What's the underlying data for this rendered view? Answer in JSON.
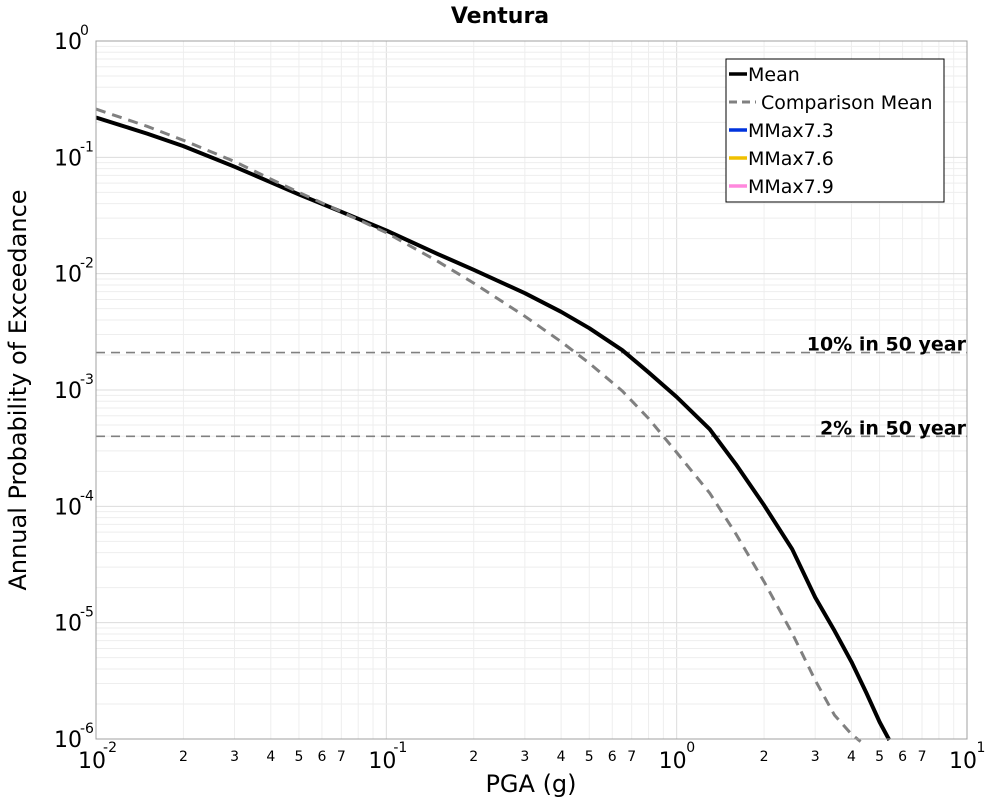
{
  "chart_data": {
    "type": "line",
    "title": "Ventura",
    "xlabel": "PGA (g)",
    "ylabel": "Annual Probability of Exceedance",
    "x_scale": "log",
    "y_scale": "log",
    "xlim": [
      0.01,
      10
    ],
    "ylim": [
      1e-06,
      1
    ],
    "grid": true,
    "legend_position": "top-right",
    "x_ticks": {
      "major": [
        {
          "value": 0.01,
          "base": "10",
          "exp": "-2"
        },
        {
          "value": 0.1,
          "base": "10",
          "exp": "-1"
        },
        {
          "value": 1,
          "base": "10",
          "exp": "0"
        },
        {
          "value": 10,
          "base": "10",
          "exp": "1"
        }
      ],
      "minor_labels": [
        "2",
        "3",
        "4",
        "5",
        "6",
        "7"
      ]
    },
    "y_ticks": {
      "major": [
        {
          "value": 1,
          "base": "10",
          "exp": "0"
        },
        {
          "value": 0.1,
          "base": "10",
          "exp": "-1"
        },
        {
          "value": 0.01,
          "base": "10",
          "exp": "-2"
        },
        {
          "value": 0.001,
          "base": "10",
          "exp": "-3"
        },
        {
          "value": 0.0001,
          "base": "10",
          "exp": "-4"
        },
        {
          "value": 1e-05,
          "base": "10",
          "exp": "-5"
        },
        {
          "value": 1e-06,
          "base": "10",
          "exp": "-6"
        }
      ]
    },
    "series": [
      {
        "name": "Mean",
        "color": "#000000",
        "style": "solid",
        "x": [
          0.01,
          0.015,
          0.02,
          0.03,
          0.04,
          0.05,
          0.07,
          0.1,
          0.15,
          0.2,
          0.3,
          0.4,
          0.5,
          0.65,
          0.8,
          1.0,
          1.3,
          1.6,
          2.0,
          2.5,
          3.0,
          3.5,
          4.0,
          4.5,
          5.0,
          5.4
        ],
        "y": [
          0.22,
          0.16,
          0.125,
          0.083,
          0.061,
          0.048,
          0.034,
          0.0235,
          0.0148,
          0.0108,
          0.0068,
          0.0047,
          0.0034,
          0.0022,
          0.00142,
          0.00087,
          0.00046,
          0.00023,
          0.000102,
          4.28e-05,
          1.65e-05,
          8.5e-06,
          4.6e-06,
          2.5e-06,
          1.4e-06,
          9.8e-07
        ]
      },
      {
        "name": "Comparison Mean",
        "color": "#808080",
        "style": "dashed",
        "x": [
          0.01,
          0.015,
          0.02,
          0.03,
          0.04,
          0.05,
          0.07,
          0.1,
          0.15,
          0.2,
          0.3,
          0.4,
          0.5,
          0.65,
          0.8,
          1.0,
          1.3,
          1.6,
          2.0,
          2.5,
          3.0,
          3.5,
          4.0,
          4.3
        ],
        "y": [
          0.26,
          0.185,
          0.14,
          0.092,
          0.065,
          0.05,
          0.034,
          0.0225,
          0.0128,
          0.0083,
          0.0043,
          0.0026,
          0.0017,
          0.00098,
          0.00057,
          0.00029,
          0.00013,
          5.8e-05,
          2.25e-05,
          8.1e-06,
          3.2e-06,
          1.6e-06,
          1.1e-06,
          9.5e-07
        ]
      },
      {
        "name": "MMax7.3",
        "color": "#0033dd",
        "style": "solid",
        "x": [],
        "y": []
      },
      {
        "name": "MMax7.6",
        "color": "#f0c000",
        "style": "solid",
        "x": [],
        "y": []
      },
      {
        "name": "MMax7.9",
        "color": "#ff88dd",
        "style": "solid",
        "x": [],
        "y": []
      }
    ],
    "reference_lines": [
      {
        "label": "10% in 50 year",
        "y": 0.0021,
        "color": "#808080"
      },
      {
        "label": "2% in 50 year",
        "y": 0.0004,
        "color": "#808080"
      }
    ]
  }
}
